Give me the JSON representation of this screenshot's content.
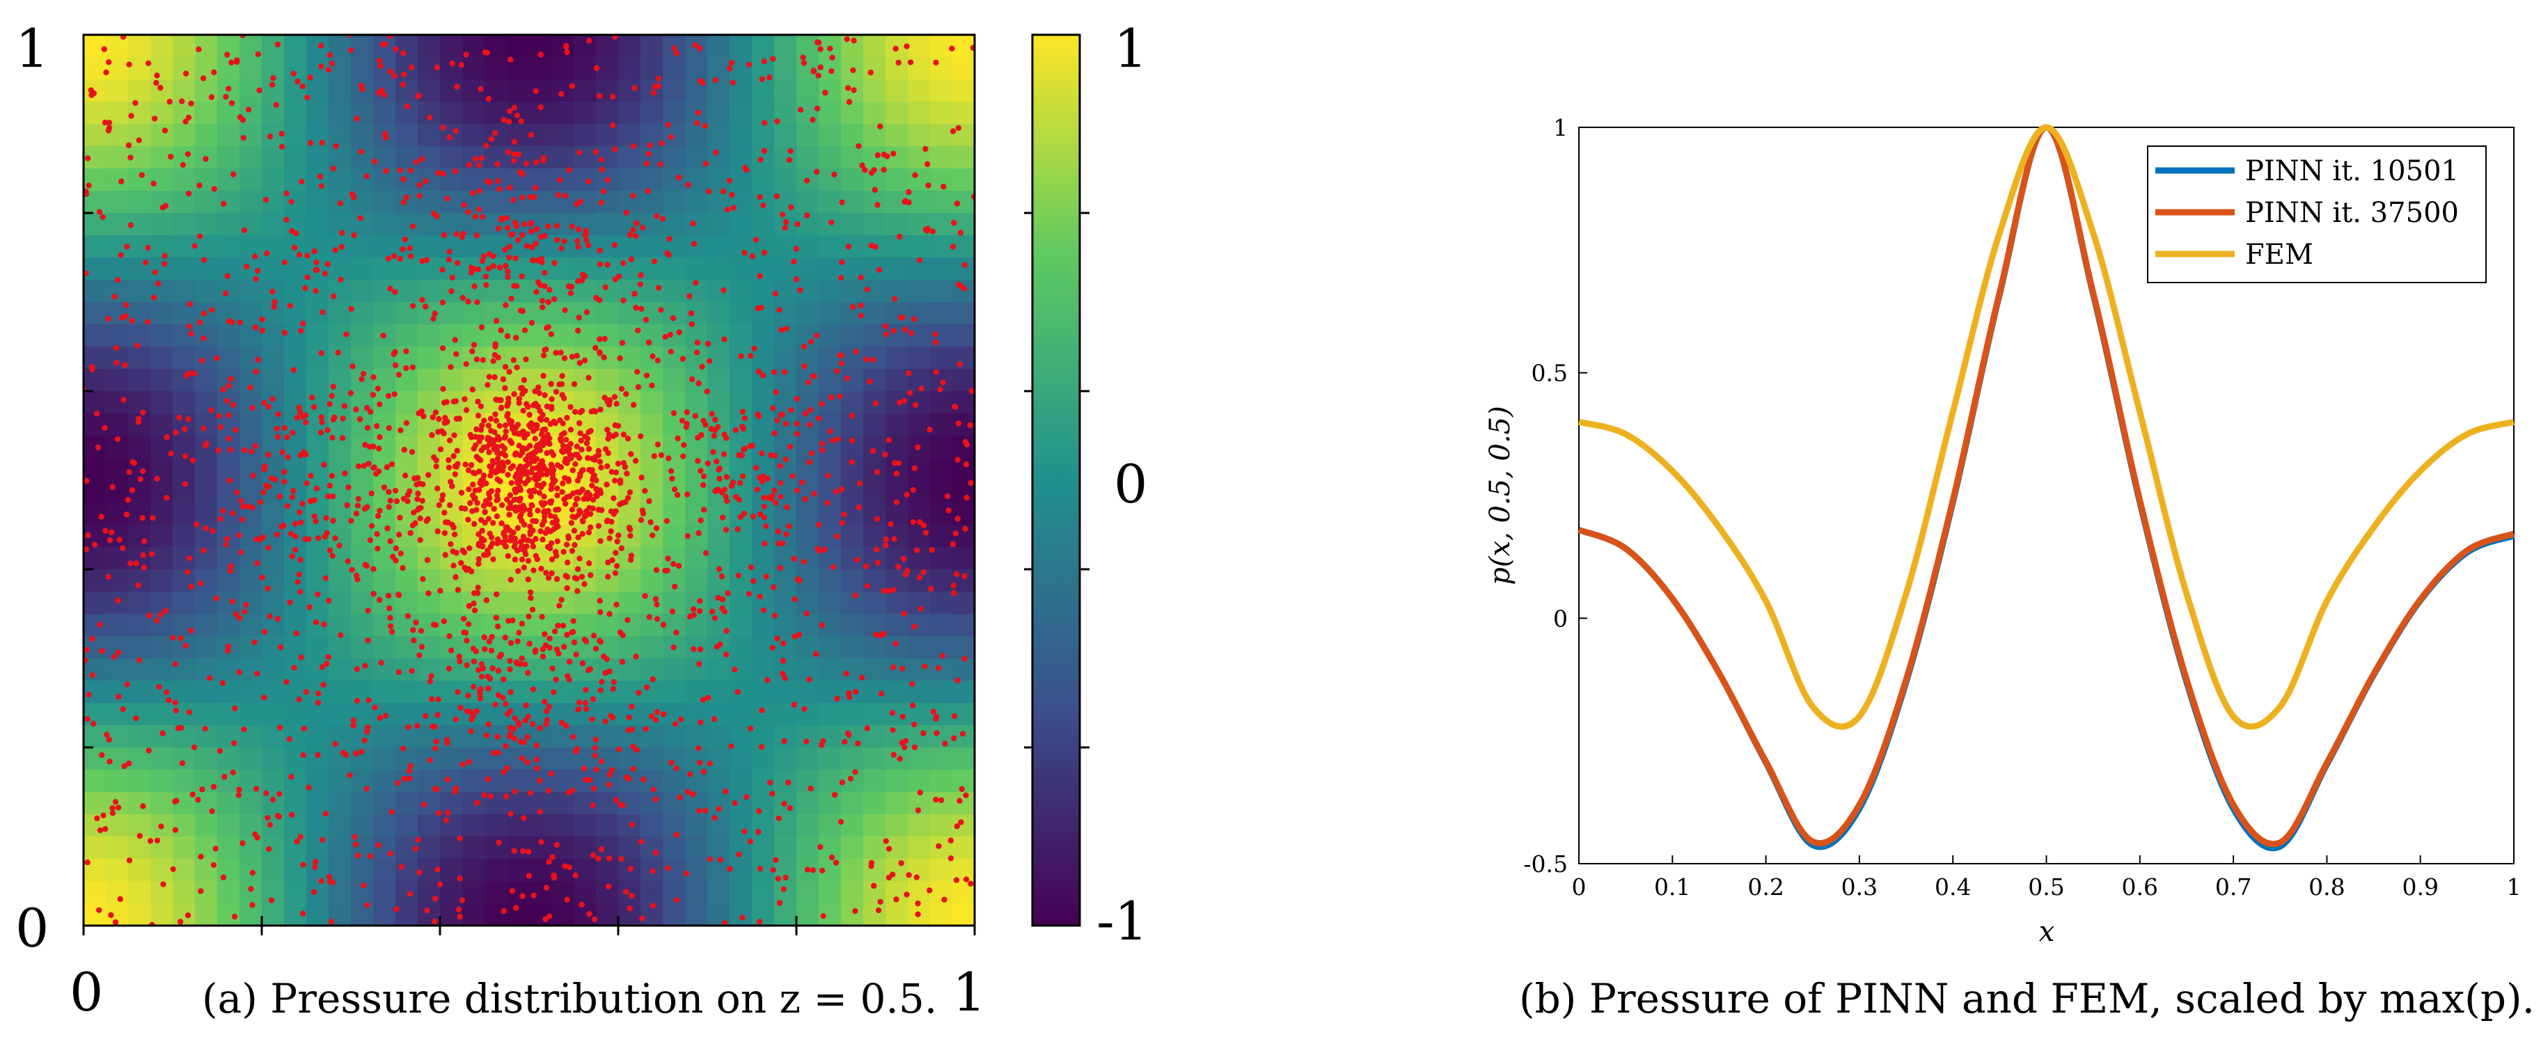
{
  "chart_data": [
    {
      "type": "heatmap",
      "caption": "(a)  Pressure distribution on z = 0.5.",
      "xlim": [
        0,
        1
      ],
      "ylim": [
        0,
        1
      ],
      "x_tick_labels": [
        "0",
        "1"
      ],
      "y_tick_labels": [
        "0",
        "1"
      ],
      "colorbar": {
        "range": [
          -1,
          1
        ],
        "tick_labels": [
          "1",
          "0",
          "-1"
        ],
        "colormap": [
          "#440154",
          "#3b528b",
          "#21908d",
          "#5dc963",
          "#fde725"
        ]
      },
      "field": "cos(2*pi*(x-0.5)) * cos(2*pi*(y-0.5)) (peak at center)",
      "overlay": {
        "type": "scatter",
        "color": "#e8121b",
        "clusters": [
          {
            "x": 0.5,
            "y": 0.5,
            "count": 700,
            "spread": 0.06
          },
          {
            "x": 0.25,
            "y": 0.5,
            "count": 140,
            "spread": 0.07
          },
          {
            "x": 0.75,
            "y": 0.5,
            "count": 140,
            "spread": 0.07
          },
          {
            "x": 0.5,
            "y": 0.75,
            "count": 160,
            "spread": 0.07
          },
          {
            "x": 0.5,
            "y": 0.25,
            "count": 160,
            "spread": 0.07
          },
          {
            "x": 0.5,
            "y": 0.5,
            "count": 1500,
            "spread": 0.5
          }
        ]
      }
    },
    {
      "type": "line",
      "caption": "(b)  Pressure of PINN and FEM, scaled by max(p).",
      "xlabel": "x",
      "ylabel": "p(x, 0.5, 0.5)",
      "xlim": [
        0,
        1
      ],
      "ylim": [
        -0.5,
        1
      ],
      "x_ticks": [
        "0",
        "0.1",
        "0.2",
        "0.3",
        "0.4",
        "0.5",
        "0.6",
        "0.7",
        "0.8",
        "0.9",
        "1"
      ],
      "y_ticks": [
        "-0.5",
        "0",
        "0.5",
        "1"
      ],
      "legend_position": "top-right",
      "x": [
        0,
        0.05,
        0.1,
        0.15,
        0.2,
        0.25,
        0.3,
        0.35,
        0.4,
        0.45,
        0.5,
        0.55,
        0.6,
        0.65,
        0.7,
        0.75,
        0.8,
        0.85,
        0.9,
        0.95,
        1
      ],
      "series": [
        {
          "name": "PINN it. 10501",
          "color": "#0072bd",
          "values": [
            0.18,
            0.142,
            0.04,
            -0.112,
            -0.294,
            -0.462,
            -0.388,
            -0.13,
            0.236,
            0.66,
            1.0,
            0.66,
            0.236,
            -0.13,
            -0.388,
            -0.465,
            -0.298,
            -0.116,
            0.036,
            0.134,
            0.168
          ]
        },
        {
          "name": "PINN it. 37500",
          "color": "#d95319",
          "values": [
            0.18,
            0.142,
            0.04,
            -0.112,
            -0.292,
            -0.455,
            -0.38,
            -0.125,
            0.24,
            0.663,
            1.0,
            0.663,
            0.24,
            -0.125,
            -0.38,
            -0.457,
            -0.295,
            -0.114,
            0.038,
            0.138,
            0.172
          ]
        },
        {
          "name": "FEM",
          "color": "#edb120",
          "values": [
            0.4,
            0.375,
            0.3,
            0.185,
            0.035,
            -0.18,
            -0.2,
            0.05,
            0.42,
            0.785,
            1.0,
            0.785,
            0.42,
            0.05,
            -0.2,
            -0.18,
            0.035,
            0.185,
            0.3,
            0.375,
            0.4
          ]
        }
      ]
    }
  ]
}
